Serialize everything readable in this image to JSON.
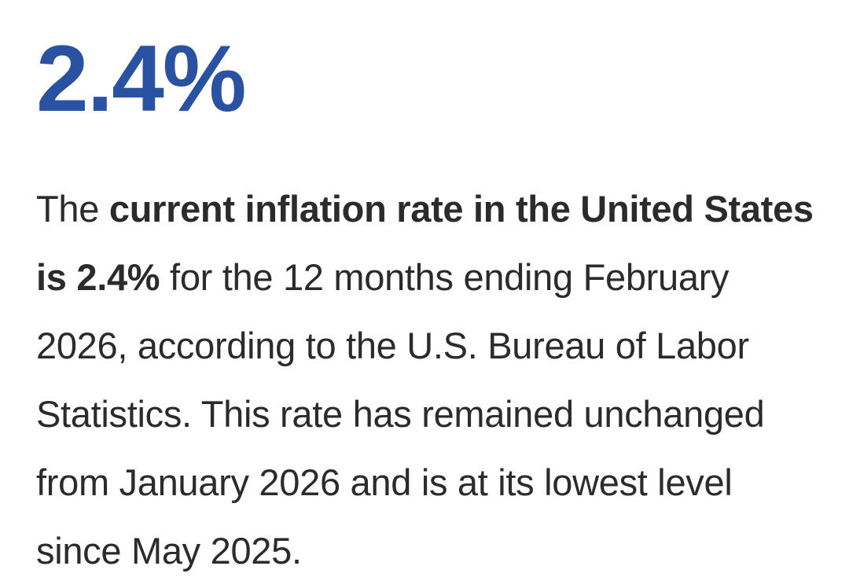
{
  "stat": {
    "value": "2.4%",
    "color": "#2952a3"
  },
  "paragraph": {
    "lead": "The ",
    "bold": "current inflation rate in the United States is 2.4%",
    "rest": " for the 12 months ending February 2026, according to the U.S. Bureau of Labor Statistics. This rate has remained unchanged from January 2026 and is at its lowest level since May 2025."
  }
}
